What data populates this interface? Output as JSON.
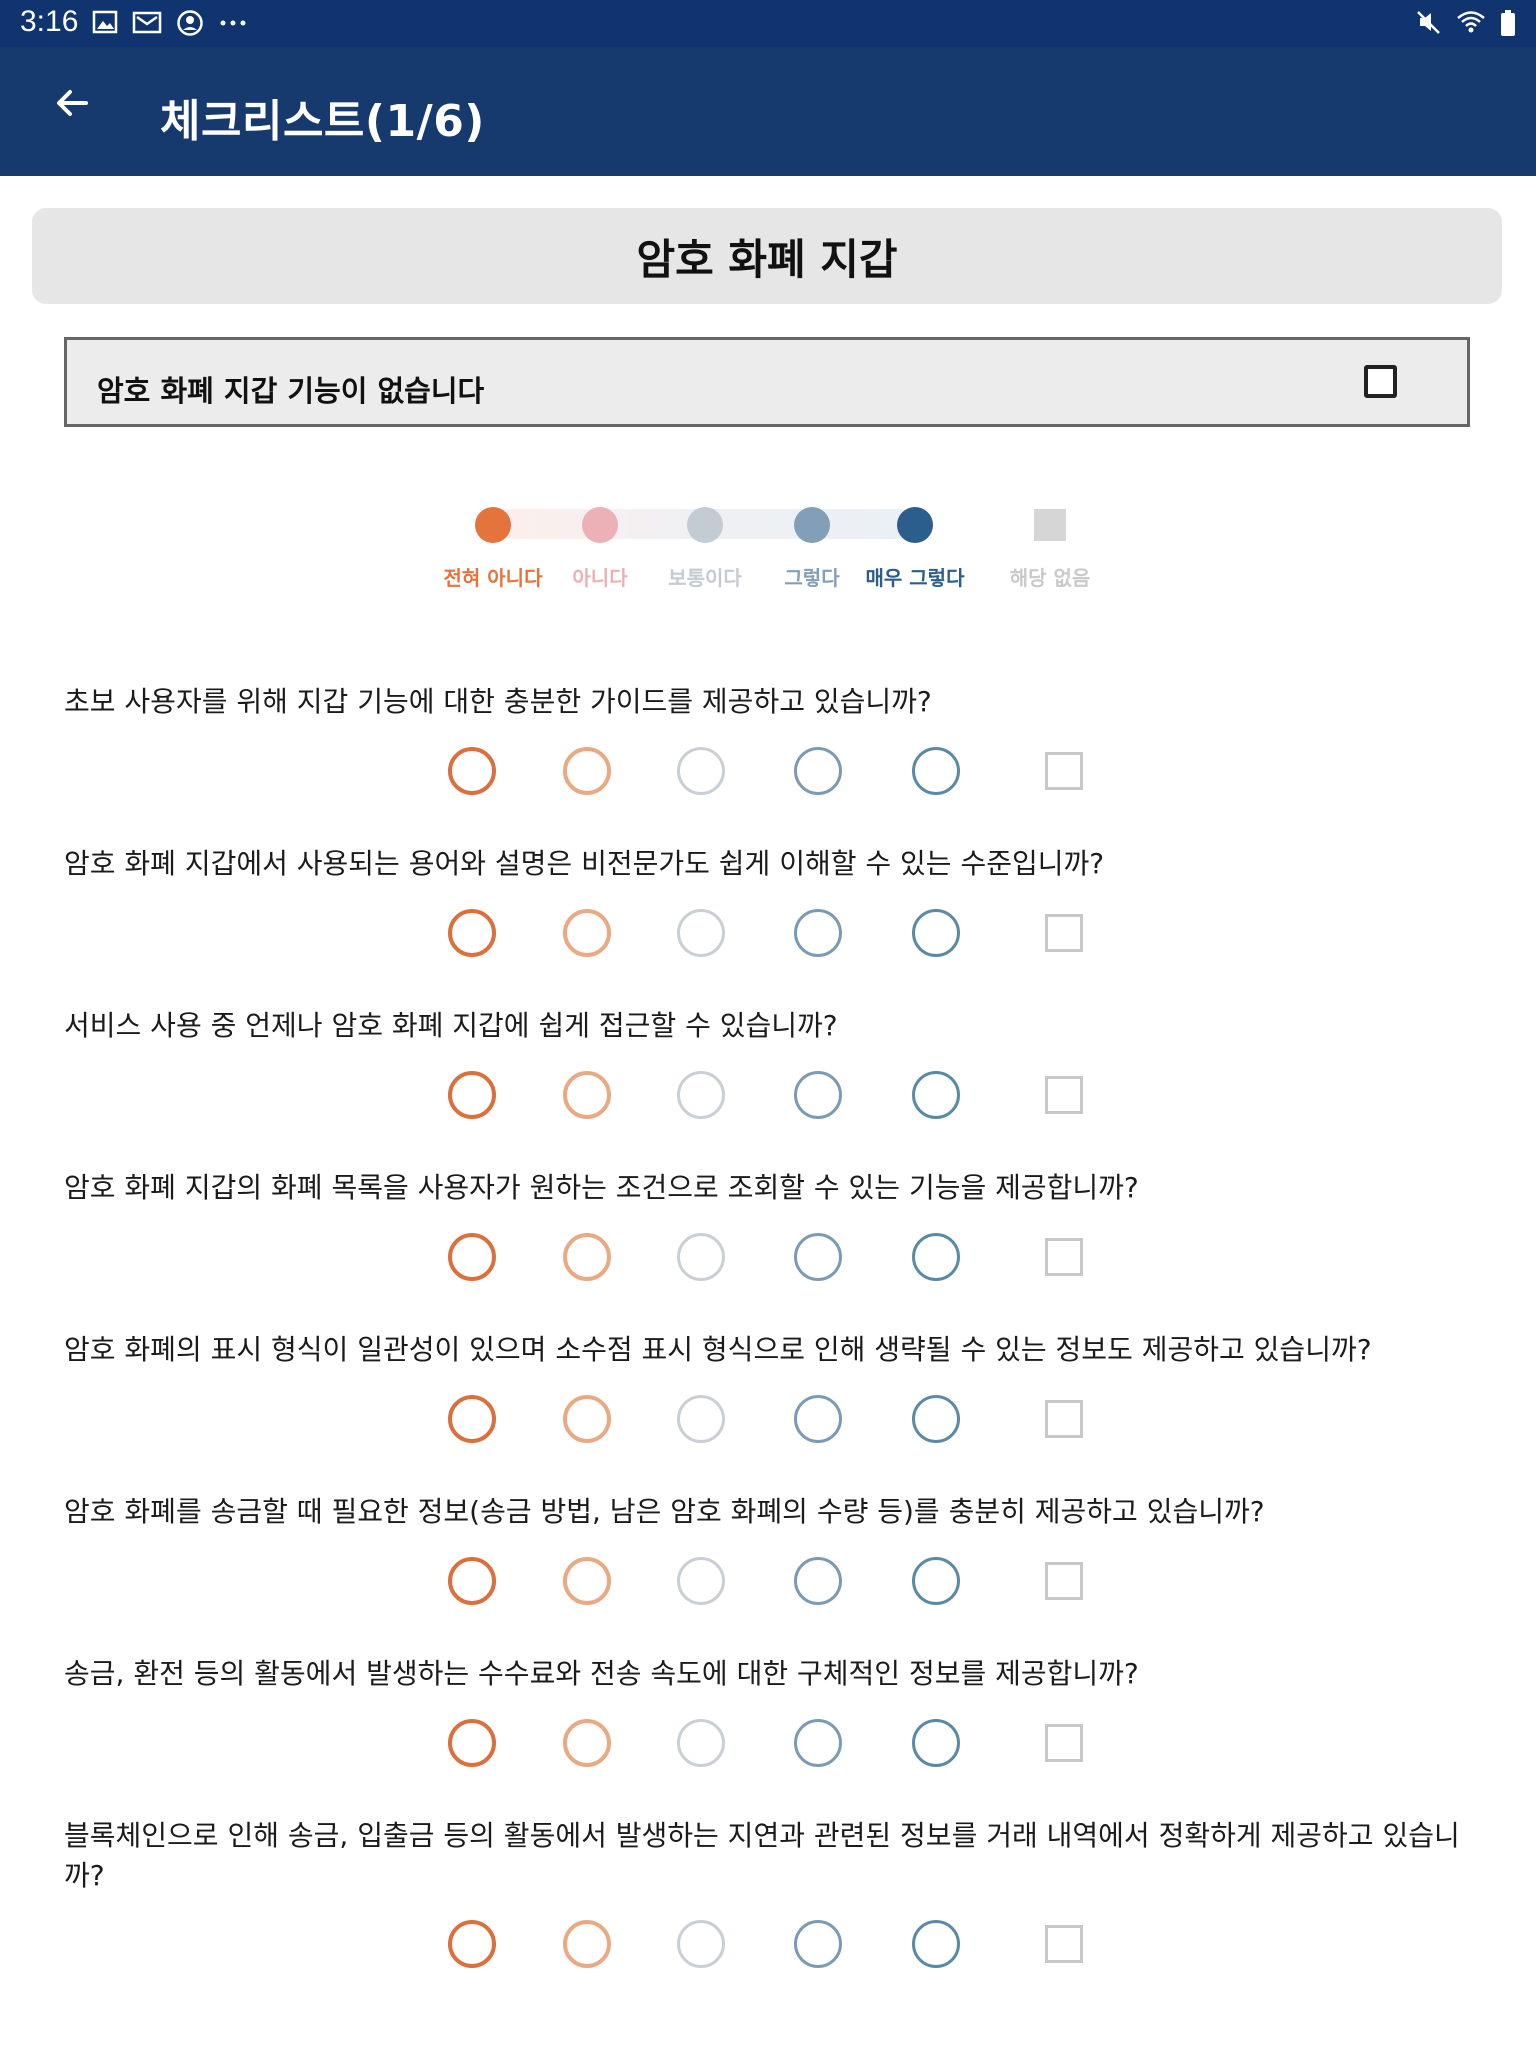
{
  "status_bar": {
    "time": "3:16",
    "left_icons": [
      "image-icon",
      "mail-icon",
      "account-icon",
      "more-icon"
    ],
    "right_icons": [
      "mute-icon",
      "wifi-icon",
      "battery-icon"
    ]
  },
  "app_bar": {
    "title": "체크리스트(1/6)"
  },
  "section": {
    "title": "암호 화폐 지갑"
  },
  "no_feature": {
    "label": "암호 화폐 지갑 기능이 없습니다"
  },
  "legend": [
    {
      "label": "전혀 아니다",
      "color": "#e5743c"
    },
    {
      "label": "아니다",
      "color": "#ecb1b6"
    },
    {
      "label": "보통이다",
      "color": "#c3cbd3"
    },
    {
      "label": "그렇다",
      "color": "#829fb9"
    },
    {
      "label": "매우 그렇다",
      "color": "#2b5e8c"
    },
    {
      "label": "해당 없음",
      "color": "#d6d6d6"
    }
  ],
  "answer_colors": [
    "#d9703d",
    "#e8a983",
    "#c9cfd4",
    "#7a9bb3",
    "#5a8aa6",
    "#c8c8c8"
  ],
  "questions": [
    {
      "text": "초보 사용자를 위해 지갑 기능에 대한 충분한 가이드를 제공하고 있습니까?"
    },
    {
      "text": "암호 화폐 지갑에서 사용되는 용어와 설명은 비전문가도 쉽게 이해할 수 있는 수준입니까?"
    },
    {
      "text": "서비스 사용 중 언제나 암호 화폐 지갑에 쉽게 접근할 수 있습니까?"
    },
    {
      "text": "암호 화폐 지갑의 화폐 목록을 사용자가 원하는 조건으로 조회할 수 있는 기능을 제공합니까?"
    },
    {
      "text": "암호 화폐의 표시 형식이 일관성이 있으며 소수점 표시 형식으로 인해 생략될 수 있는 정보도 제공하고 있습니까?"
    },
    {
      "text": "암호 화폐를 송금할 때 필요한 정보(송금 방법, 남은 암호 화폐의 수량 등)를 충분히 제공하고 있습니까?"
    },
    {
      "text": "송금, 환전 등의 활동에서 발생하는 수수료와 전송 속도에 대한 구체적인 정보를 제공합니까?"
    },
    {
      "text": "블록체인으로 인해 송금, 입출금 등의 활동에서 발생하는 지연과 관련된 정보를 거래 내역에서 정확하게 제공하고 있습니까?"
    }
  ]
}
